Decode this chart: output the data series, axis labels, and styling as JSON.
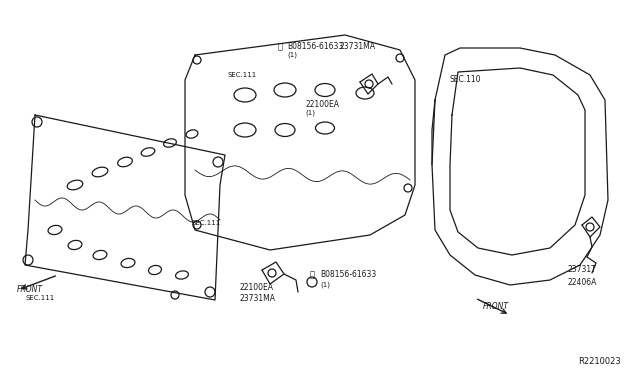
{
  "bg_color": "#ffffff",
  "line_color": "#1a1a1a",
  "fig_width": 6.4,
  "fig_height": 3.72,
  "dpi": 100,
  "diagram_id": "R2210023",
  "labels": {
    "top_bolt": "B08156-61633",
    "top_bolt_sub": "(1)",
    "top_sensor_label": "23731MA",
    "top_cam_sensor": "22100EA",
    "sec111_center": "SEC.111",
    "sec111_left": "SEC.111",
    "bot_bolt": "B08156-61633",
    "bot_bolt_sub": "(1)",
    "bot_cam_sensor": "22100EA",
    "bot_sensor_label": "23731MA",
    "sec110": "SEC.110",
    "right_sensor1": "23731T",
    "right_sensor2": "22406A",
    "front_left": "FRONT",
    "front_right": "FRONT"
  }
}
